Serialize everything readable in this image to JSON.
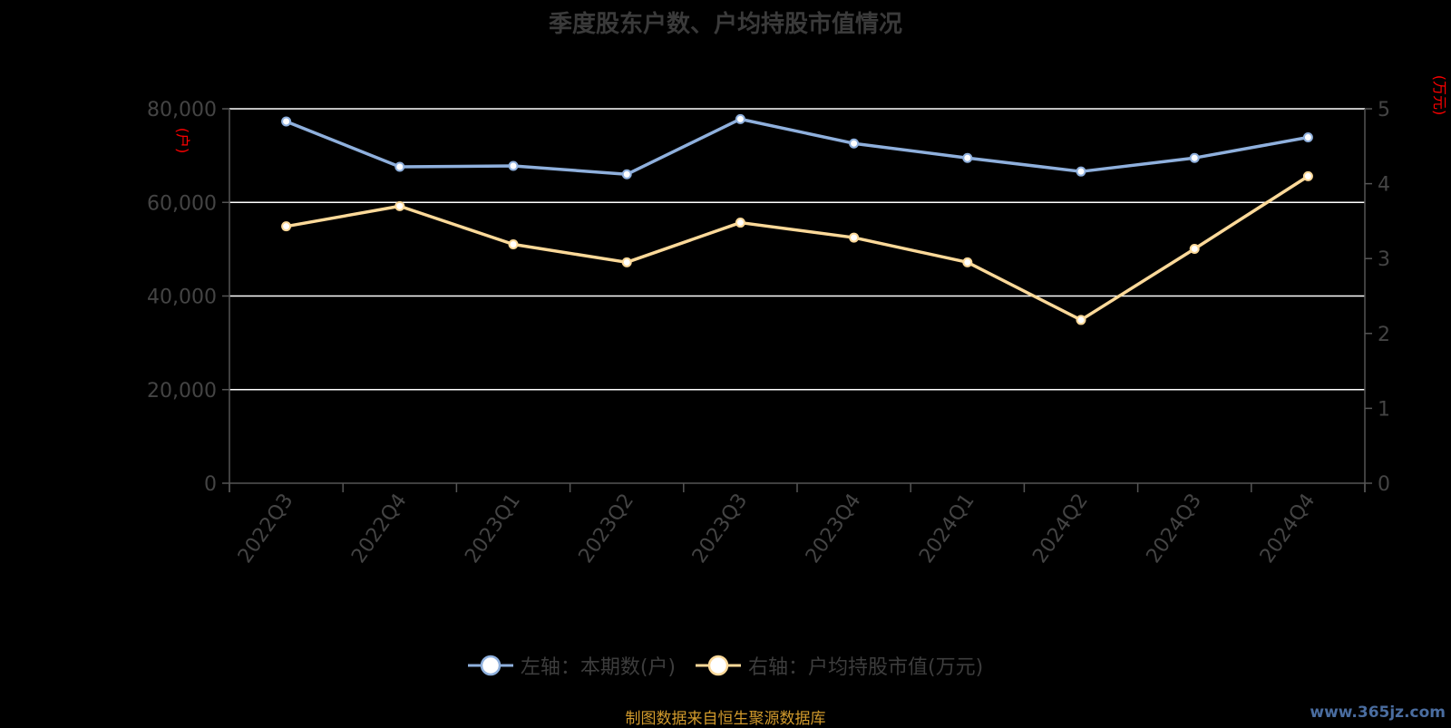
{
  "title": "季度股东户数、户均持股市值情况",
  "source_note": "制图数据来自恒生聚源数据库",
  "watermark": "www.365jz.com",
  "legend": [
    {
      "label": "左轴：本期数(户)"
    },
    {
      "label": "右轴：户均持股市值(万元)"
    }
  ],
  "colors": {
    "series_left": "#8fb0dd",
    "series_right": "#fcd999",
    "grid": "#ffffff",
    "axis": "#555555",
    "tick_text": "#444444",
    "unit_label": "#ff0000"
  },
  "chart_data": {
    "type": "line",
    "title": "季度股东户数、户均持股市值情况",
    "categories": [
      "2022Q3",
      "2022Q4",
      "2023Q1",
      "2023Q2",
      "2023Q3",
      "2023Q4",
      "2024Q1",
      "2024Q2",
      "2024Q3",
      "2024Q4"
    ],
    "y_left": {
      "unit_label": "(户)",
      "ylim": [
        0,
        80000
      ],
      "ticks": [
        "0",
        "20,000",
        "40,000",
        "60,000",
        "80,000"
      ],
      "tick_values": [
        0,
        20000,
        40000,
        60000,
        80000
      ]
    },
    "y_right": {
      "unit_label": "(万元)",
      "ylim": [
        0,
        5
      ],
      "ticks": [
        "0",
        "1",
        "2",
        "3",
        "4",
        "5"
      ],
      "tick_values": [
        0,
        1,
        2,
        3,
        4,
        5
      ]
    },
    "series": [
      {
        "name": "左轴：本期数(户)",
        "axis": "left",
        "values": [
          77300,
          67600,
          67800,
          66000,
          77800,
          72600,
          69500,
          66600,
          69500,
          73900
        ]
      },
      {
        "name": "右轴：户均持股市值(万元)",
        "axis": "right",
        "values": [
          3.43,
          3.7,
          3.19,
          2.95,
          3.48,
          3.28,
          2.95,
          2.18,
          3.13,
          4.1
        ]
      }
    ],
    "grid": true,
    "legend_position": "bottom"
  }
}
